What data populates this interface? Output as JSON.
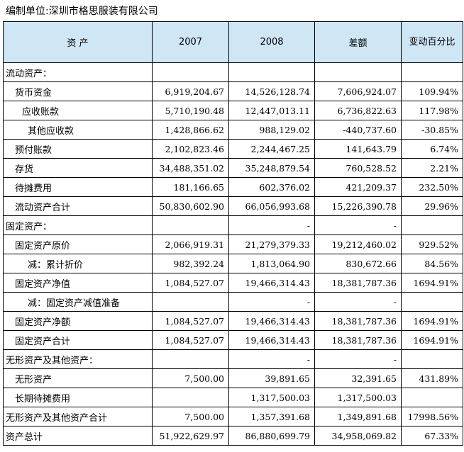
{
  "caption": "编制单位:深圳市格思服装有限公司",
  "headers": {
    "asset": "资    产",
    "y2007": "2007",
    "y2008": "2008",
    "diff": "差额",
    "pct": "变动百分比"
  },
  "rows": [
    {
      "label": "流动资产：",
      "v2007": "",
      "v2008": "",
      "diff": "",
      "pct": ""
    },
    {
      "label": "货币资金",
      "v2007": "6,919,204.67",
      "v2008": "14,526,128.74",
      "diff": "7,606,924.07",
      "pct": "109.94%"
    },
    {
      "label": "应收账款",
      "v2007": "5,710,190.48",
      "v2008": "12,447,013.11",
      "diff": "6,736,822.63",
      "pct": "117.98%"
    },
    {
      "label": "其他应收款",
      "v2007": "1,428,866.62",
      "v2008": "988,129.02",
      "diff": "-440,737.60",
      "pct": "-30.85%"
    },
    {
      "label": "预付账款",
      "v2007": "2,102,823.46",
      "v2008": "2,244,467.25",
      "diff": "141,643.79",
      "pct": "6.74%"
    },
    {
      "label": "存货",
      "v2007": "34,488,351.02",
      "v2008": "35,248,879.54",
      "diff": "760,528.52",
      "pct": "2.21%"
    },
    {
      "label": "待摊费用",
      "v2007": "181,166.65",
      "v2008": "602,376.02",
      "diff": "421,209.37",
      "pct": "232.50%"
    },
    {
      "label": "流动资产合计",
      "v2007": "50,830,602.90",
      "v2008": "66,056,993.68",
      "diff": "15,226,390.78",
      "pct": "29.96%"
    },
    {
      "label": "固定资产：",
      "v2007": "",
      "v2008": "-",
      "diff": "-",
      "pct": ""
    },
    {
      "label": "固定资产原价",
      "v2007": "2,066,919.31",
      "v2008": "21,279,379.33",
      "diff": "19,212,460.02",
      "pct": "929.52%"
    },
    {
      "label": "减：累计折价",
      "v2007": "982,392.24",
      "v2008": "1,813,064.90",
      "diff": "830,672.66",
      "pct": "84.56%"
    },
    {
      "label": "固定资产净值",
      "v2007": "1,084,527.07",
      "v2008": "19,466,314.43",
      "diff": "18,381,787.36",
      "pct": "1694.91%"
    },
    {
      "label": "减：固定资产减值准备",
      "v2007": "",
      "v2008": "-",
      "diff": "-",
      "pct": ""
    },
    {
      "label": "固定资产净额",
      "v2007": "1,084,527.07",
      "v2008": "19,466,314.43",
      "diff": "18,381,787.36",
      "pct": "1694.91%"
    },
    {
      "label": "固定资产合计",
      "v2007": "1,084,527.07",
      "v2008": "19,466,314.43",
      "diff": "18,381,787.36",
      "pct": "1694.91%"
    },
    {
      "label": "无形资产及其他资产：",
      "v2007": "",
      "v2008": "-",
      "diff": "-",
      "pct": ""
    },
    {
      "label": "无形资产",
      "v2007": "7,500.00",
      "v2008": "39,891.65",
      "diff": "32,391.65",
      "pct": "431.89%"
    },
    {
      "label": "长期待摊费用",
      "v2007": "",
      "v2008": "1,317,500.03",
      "diff": "1,317,500.03",
      "pct": ""
    },
    {
      "label": "无形资产及其他资产合计",
      "v2007": "7,500.00",
      "v2008": "1,357,391.68",
      "diff": "1,349,891.68",
      "pct": "17998.56%"
    },
    {
      "label": "资产总计",
      "v2007": "51,922,629.97",
      "v2008": "86,880,699.79",
      "diff": "34,958,069.82",
      "pct": "67.33%"
    }
  ]
}
